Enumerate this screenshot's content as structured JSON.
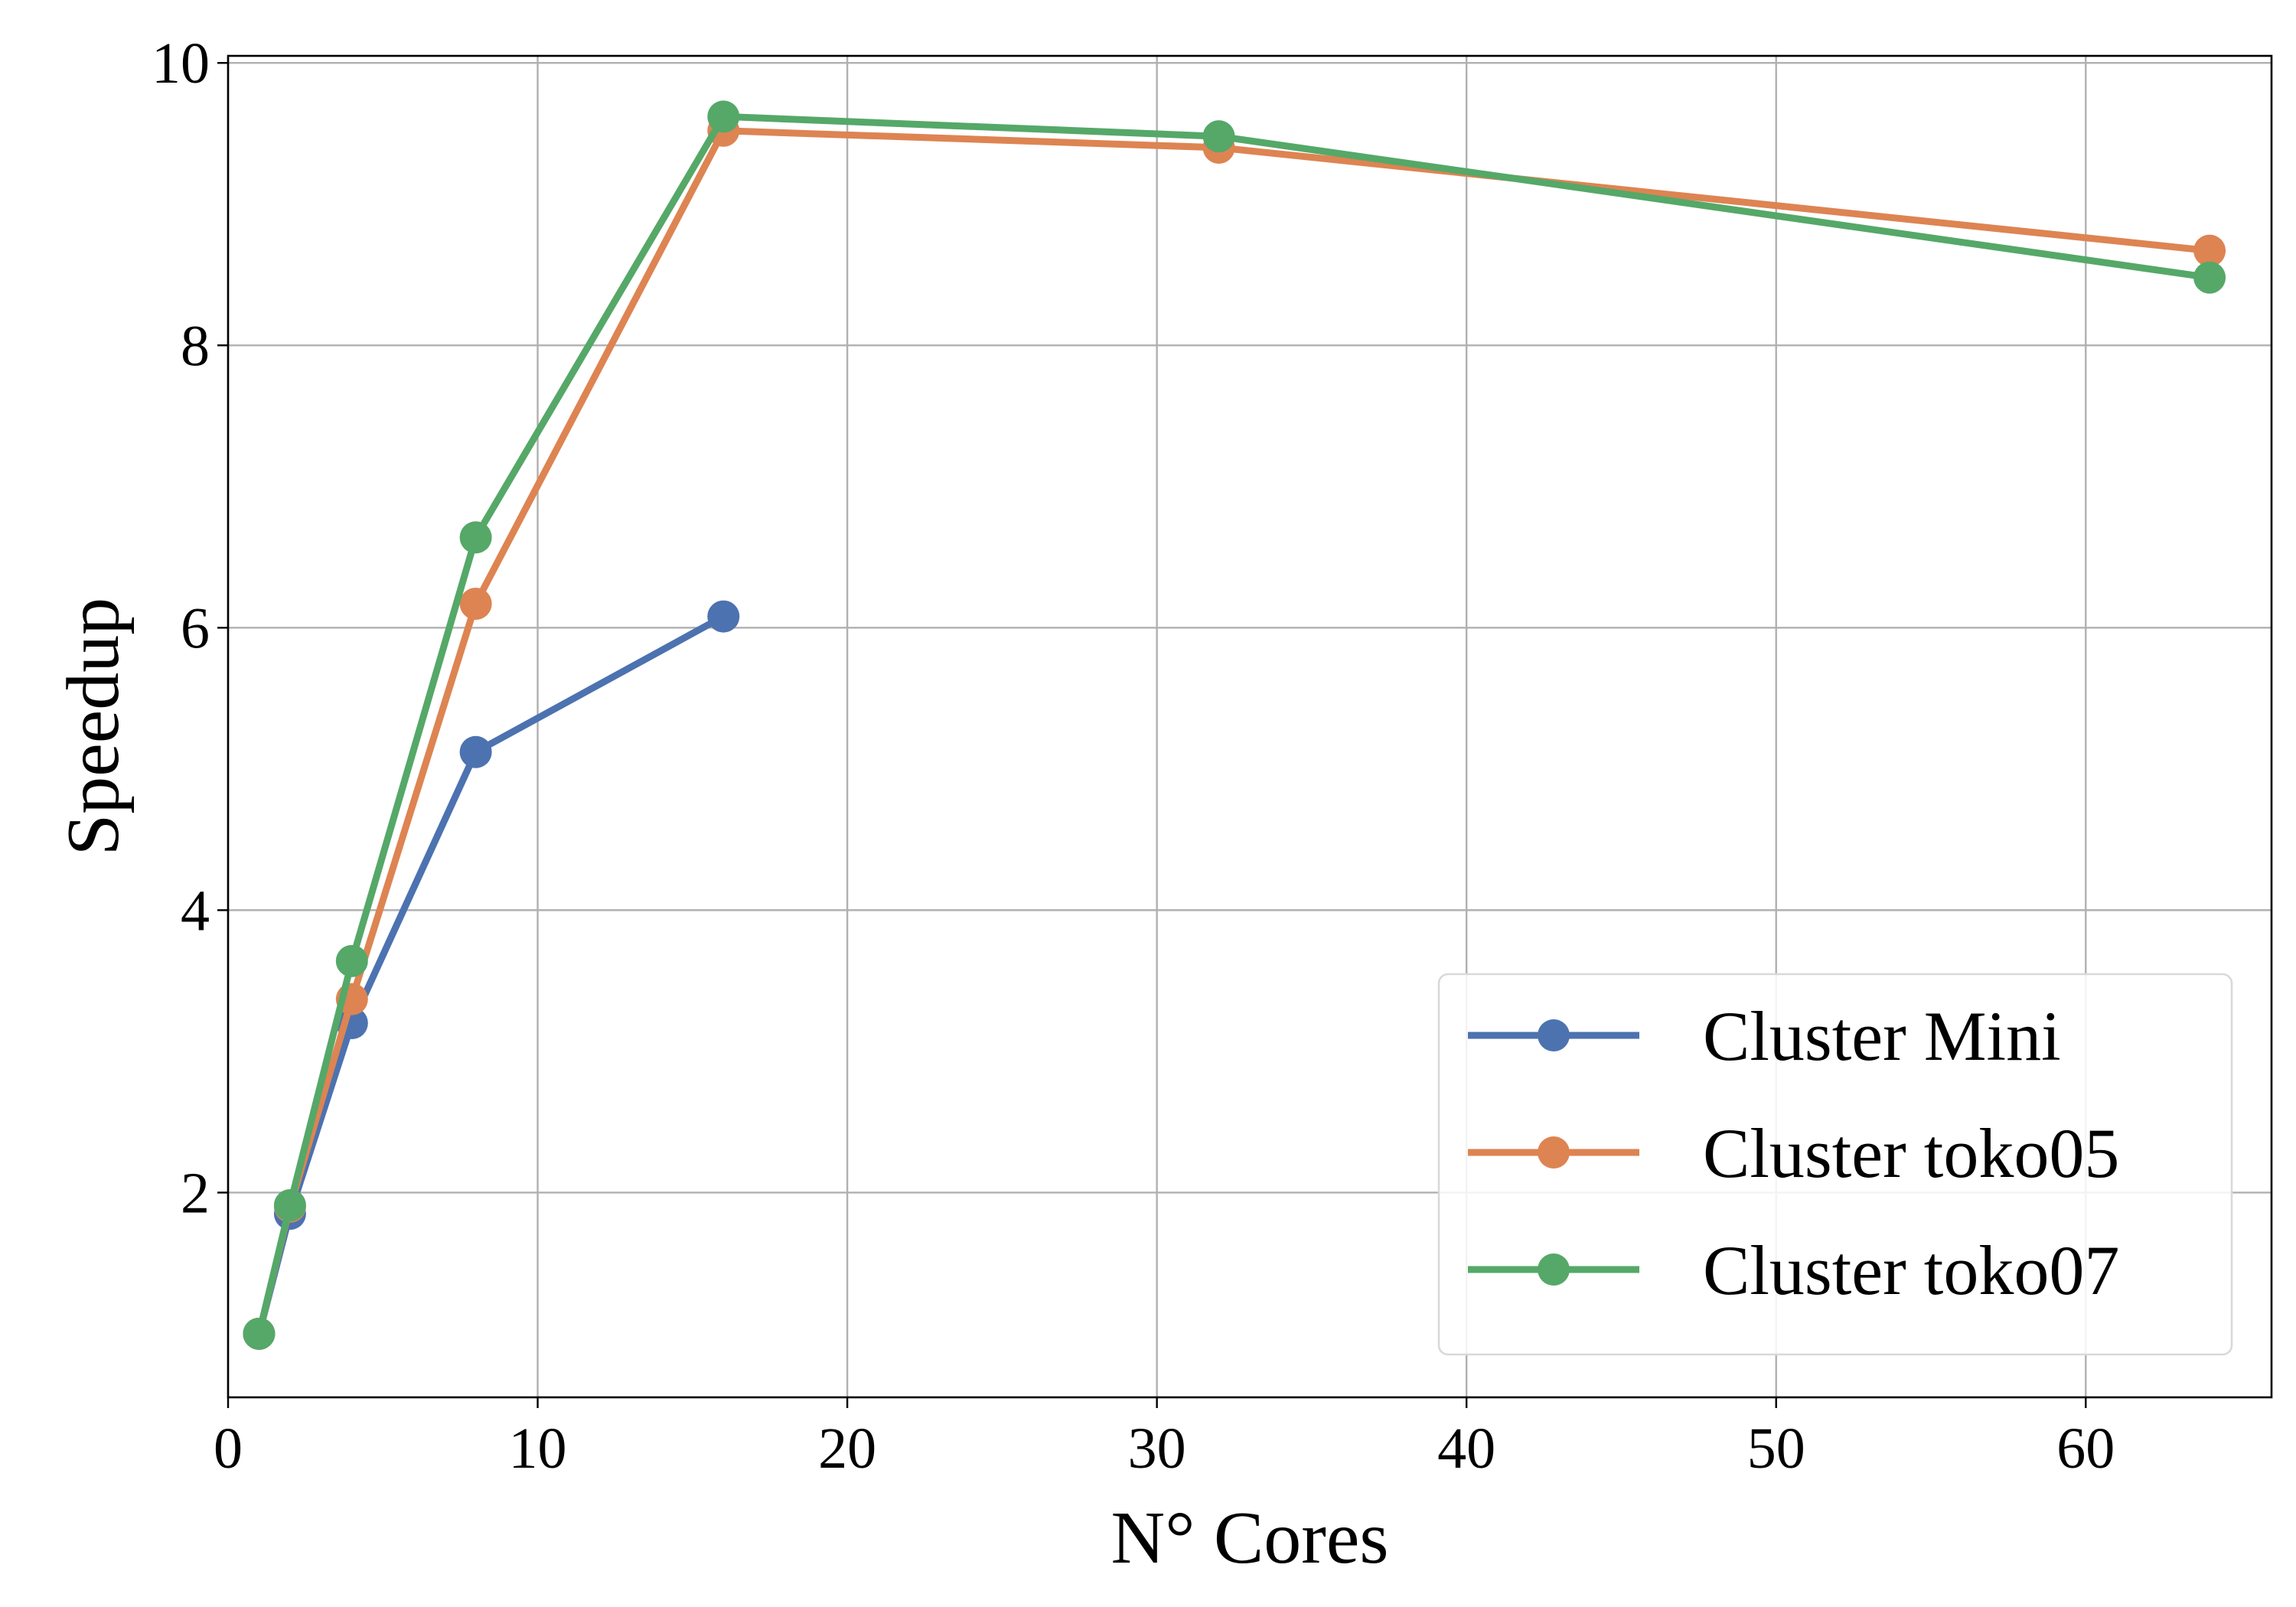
{
  "chart_data": {
    "type": "line",
    "title": "",
    "xlabel": "N° Cores",
    "ylabel": "Speedup",
    "xlim": [
      0,
      66
    ],
    "ylim": [
      0.55,
      10.05
    ],
    "xticks": [
      0,
      10,
      20,
      30,
      40,
      50,
      60
    ],
    "yticks": [
      2,
      4,
      6,
      8,
      10
    ],
    "grid": true,
    "legend_position": "lower-right",
    "series": [
      {
        "name": "Cluster Mini",
        "color": "#4c72b0",
        "x": [
          1,
          2,
          4,
          8,
          16
        ],
        "y": [
          1.0,
          1.85,
          3.2,
          5.12,
          6.08
        ]
      },
      {
        "name": "Cluster toko05",
        "color": "#dd8452",
        "x": [
          1,
          2,
          4,
          8,
          16,
          32,
          64
        ],
        "y": [
          1.0,
          1.9,
          3.37,
          6.17,
          9.52,
          9.4,
          8.67
        ]
      },
      {
        "name": "Cluster toko07",
        "color": "#55a868",
        "x": [
          1,
          2,
          4,
          8,
          16,
          32,
          64
        ],
        "y": [
          1.0,
          1.91,
          3.64,
          6.64,
          9.62,
          9.48,
          8.48
        ]
      }
    ]
  }
}
